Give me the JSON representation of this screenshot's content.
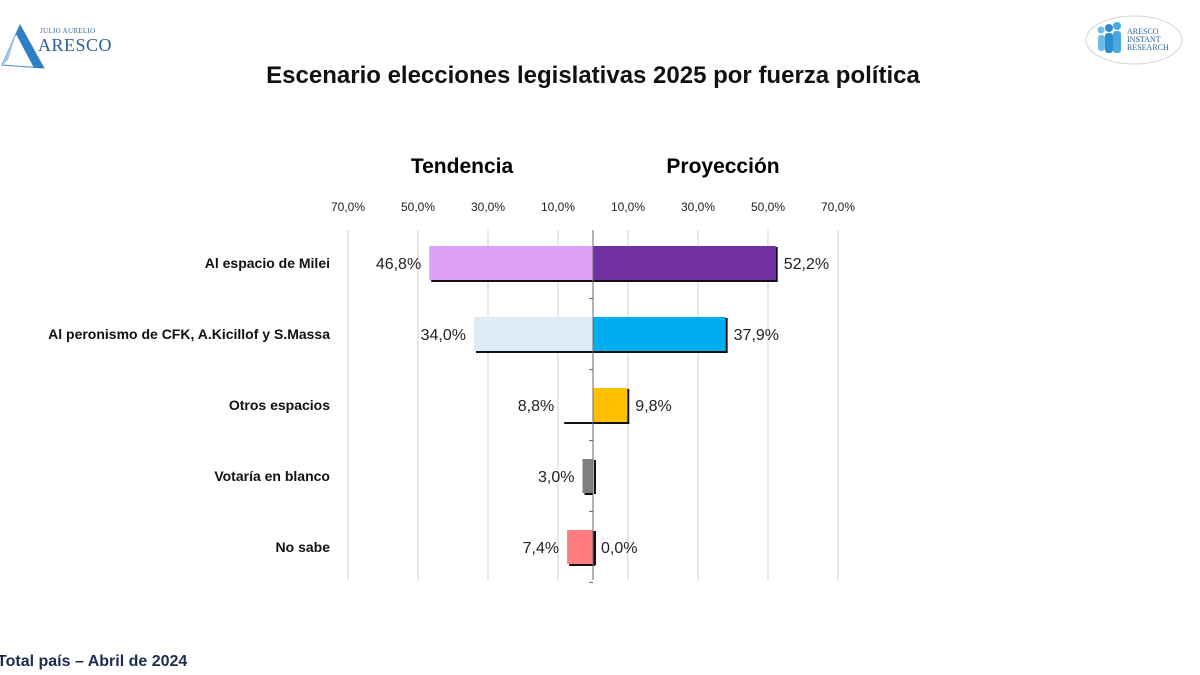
{
  "header": {
    "left_logo": {
      "small": "JULIO AURELIO",
      "big": "ARESCO",
      "icon": "triangle-logo-icon"
    },
    "right_logo": {
      "lines": [
        "ARESCO",
        "INSTANT",
        "RESEARCH"
      ],
      "icon": "people-group-logo-icon"
    },
    "title": "Escenario elecciones legislativas 2025 por fuerza política"
  },
  "footnote": "Total país – Abril de 2024",
  "colors": {
    "milei_tendencia": "#dea1f6",
    "milei_proyeccion": "#7030a0",
    "peronismo_tendencia": "#dcebf5",
    "peronismo_proyeccion": "#00aeef",
    "otros_proyeccion": "#ffc000",
    "blanco": "#7f7f7f",
    "nosabe": "#ff7c80"
  },
  "chart_data": {
    "type": "bar",
    "orientation": "horizontal-butterfly",
    "title": "Escenario elecciones legislativas 2025 por fuerza política",
    "panels": {
      "left": "Tendencia",
      "right": "Proyección"
    },
    "categories": [
      "Al espacio de Milei",
      "Al peronismo de CFK, A.Kicillof y S.Massa",
      "Otros espacios",
      "Votaría en blanco",
      "No sabe"
    ],
    "series": [
      {
        "name": "Tendencia",
        "side": "left",
        "values": [
          46.8,
          34.0,
          8.8,
          3.0,
          7.4
        ],
        "labels": [
          "46,8%",
          "34,0%",
          "8,8%",
          "3,0%",
          "7,4%"
        ],
        "colors": [
          "#dea1f6",
          "#dcebf5",
          "none",
          "#7f7f7f",
          "#ff7c80"
        ]
      },
      {
        "name": "Proyección",
        "side": "right",
        "values": [
          52.2,
          37.9,
          9.8,
          null,
          0.0
        ],
        "labels": [
          "52,2%",
          "37,9%",
          "9,8%",
          "",
          "0,0%"
        ],
        "colors": [
          "#7030a0",
          "#00aeef",
          "#ffc000",
          "none",
          "#ff7c80"
        ]
      }
    ],
    "xticks": [
      "70,0%",
      "50,0%",
      "30,0%",
      "10,0%",
      "10,0%",
      "30,0%",
      "50,0%",
      "70,0%"
    ],
    "xtick_values": [
      -70,
      -50,
      -30,
      -10,
      10,
      30,
      50,
      70
    ],
    "xlim": [
      -70,
      70
    ],
    "grid": true,
    "legend": "none"
  }
}
